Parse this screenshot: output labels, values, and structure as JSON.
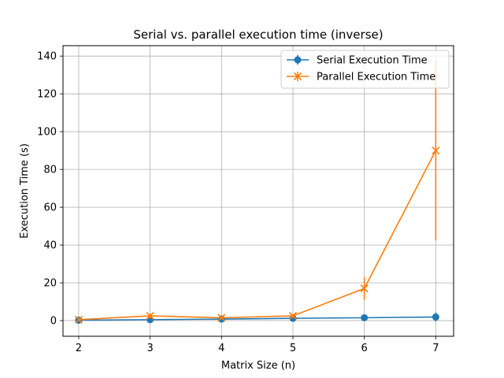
{
  "chart_data": {
    "type": "line",
    "title": "Serial vs. parallel execution time (inverse)",
    "xlabel": "Matrix Size (n)",
    "ylabel": "Execution Time (s)",
    "xlim": [
      1.78,
      7.25
    ],
    "ylim": [
      -8.3,
      145.5
    ],
    "xticks": [
      2,
      3,
      4,
      5,
      6,
      7
    ],
    "yticks": [
      0,
      20,
      40,
      60,
      80,
      100,
      120,
      140
    ],
    "grid": true,
    "legend_position": "top-right",
    "x": [
      2,
      3,
      4,
      5,
      6,
      7
    ],
    "series": [
      {
        "name": "Serial Execution Time",
        "color": "#1f77b4",
        "marker": "circle",
        "values": [
          0.2,
          0.5,
          0.8,
          1.2,
          1.5,
          1.9
        ],
        "errors": [
          0.4,
          0.6,
          0.8,
          1.0,
          1.5,
          2.3
        ]
      },
      {
        "name": "Parallel Execution Time",
        "color": "#ff7f0e",
        "marker": "x",
        "values": [
          0.5,
          2.5,
          1.5,
          2.5,
          17.0,
          90.0
        ],
        "errors": [
          0.5,
          1.2,
          0.8,
          1.0,
          6.0,
          47.5
        ]
      }
    ]
  }
}
